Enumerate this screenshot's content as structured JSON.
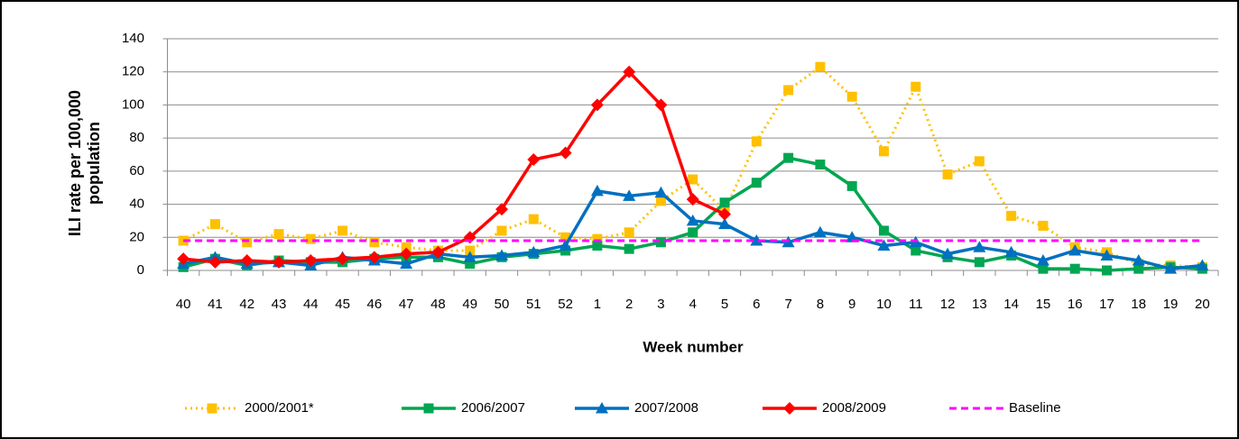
{
  "chart_data": {
    "type": "line",
    "y_label": "ILI rate per 100,000 population",
    "x_label": "Week number",
    "categories": [
      "40",
      "41",
      "42",
      "43",
      "44",
      "45",
      "46",
      "47",
      "48",
      "49",
      "50",
      "51",
      "52",
      "1",
      "2",
      "3",
      "4",
      "5",
      "6",
      "7",
      "8",
      "9",
      "10",
      "11",
      "12",
      "13",
      "14",
      "15",
      "16",
      "17",
      "18",
      "19",
      "20"
    ],
    "ylim": [
      0,
      140
    ],
    "yticks": [
      0,
      20,
      40,
      60,
      80,
      100,
      120,
      140
    ],
    "grid": true,
    "legend": "bottom",
    "series": [
      {
        "name": "2000/2001*",
        "color": "#ffc000",
        "line_style": "dotted",
        "marker": "square",
        "values": [
          18,
          28,
          17,
          22,
          19,
          24,
          17,
          14,
          12,
          12,
          24,
          31,
          20,
          19,
          23,
          42,
          55,
          36,
          78,
          109,
          123,
          105,
          72,
          111,
          58,
          66,
          33,
          27,
          14,
          11,
          4,
          3,
          2
        ]
      },
      {
        "name": "2006/2007",
        "color": "#00a651",
        "line_style": "solid",
        "marker": "square",
        "values": [
          2,
          7,
          3,
          6,
          5,
          5,
          7,
          8,
          8,
          4,
          8,
          10,
          12,
          15,
          13,
          17,
          23,
          41,
          53,
          68,
          64,
          51,
          24,
          12,
          8,
          5,
          9,
          1,
          1,
          0,
          1,
          2,
          1
        ]
      },
      {
        "name": "2007/2008",
        "color": "#0070c0",
        "line_style": "solid",
        "marker": "triangle",
        "values": [
          4,
          8,
          4,
          5,
          3,
          8,
          6,
          4,
          10,
          8,
          9,
          11,
          15,
          48,
          45,
          47,
          30,
          28,
          18,
          17,
          23,
          20,
          15,
          17,
          10,
          14,
          11,
          6,
          12,
          9,
          6,
          1,
          3
        ]
      },
      {
        "name": "2008/2009",
        "color": "#ff0000",
        "line_style": "solid",
        "marker": "diamond",
        "values": [
          7,
          5,
          6,
          5,
          6,
          7,
          8,
          10,
          11,
          20,
          37,
          67,
          71,
          100,
          120,
          100,
          43,
          34,
          null,
          null,
          null,
          null,
          null,
          null,
          null,
          null,
          null,
          null,
          null,
          null,
          null,
          null,
          null
        ]
      },
      {
        "name": "Baseline",
        "color": "#ff00ff",
        "line_style": "dashed",
        "marker": "none",
        "values": [
          18,
          18,
          18,
          18,
          18,
          18,
          18,
          18,
          18,
          18,
          18,
          18,
          18,
          18,
          18,
          18,
          18,
          18,
          18,
          18,
          18,
          18,
          18,
          18,
          18,
          18,
          18,
          18,
          18,
          18,
          18,
          18,
          18
        ]
      }
    ]
  }
}
